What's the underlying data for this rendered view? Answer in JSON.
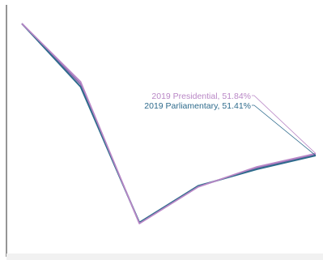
{
  "chart_data": {
    "type": "line",
    "title": "",
    "xlabel": "",
    "ylabel": "",
    "grid": false,
    "legend": "none",
    "x": [
      1,
      2,
      3,
      4,
      5,
      6
    ],
    "series": [
      {
        "name": "2019 Presidential, 51.84%",
        "color": "#b987c6",
        "values": [
          80,
          62.5,
          20,
          31,
          37,
          41
        ]
      },
      {
        "name": "2019 Parliamentary, 51.41%",
        "color": "#2e6b8c",
        "values": [
          80,
          61,
          20.3,
          31.3,
          36.3,
          40.4
        ]
      },
      {
        "name": "",
        "color": "#8b6bb0",
        "values": [
          79.9,
          61.8,
          20.1,
          31.1,
          36.7,
          40.7
        ]
      }
    ],
    "ylim": [
      0,
      80
    ],
    "annotations": [
      {
        "text": "2019 Presidential, 51.84%",
        "color": "#b987c6",
        "series_index": 0
      },
      {
        "text": "2019 Parliamentary, 51.41%",
        "color": "#2e6b8c",
        "series_index": 1
      }
    ]
  }
}
